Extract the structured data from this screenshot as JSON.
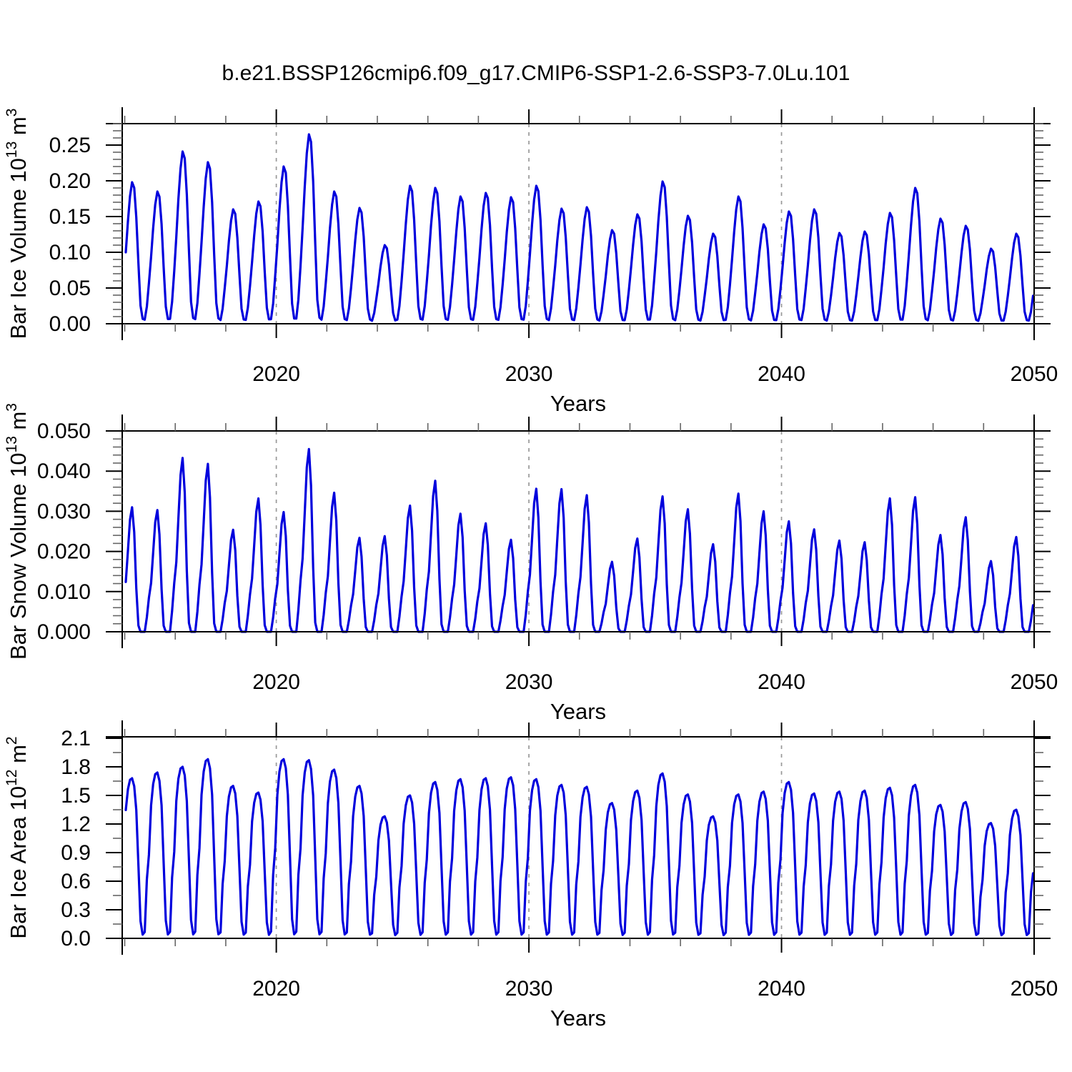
{
  "title": "b.e21.BSSP126cmip6.f09_g17.CMIP6-SSP1-2.6-SSP3-7.0Lu.101",
  "style": {
    "background": "#ffffff",
    "line_color": "#0000dd",
    "frame_color": "#000000",
    "minor_tick_color": "#666666",
    "grid_color": "#999999",
    "text_color": "#000000"
  },
  "x_axis": {
    "label": "Years",
    "range": [
      2013.9,
      2050
    ],
    "major_ticks": [
      2020,
      2030,
      2040,
      2050
    ],
    "minor_step_years": 2,
    "dashed_grid_years": [
      2020,
      2030,
      2040
    ]
  },
  "chart_data": [
    {
      "type": "line",
      "name": "bar-ice-volume",
      "title": "",
      "ylabel": "Bar Ice Volume 10^13 m^3",
      "ylabel_runs": [
        [
          "Bar Ice Volume 10",
          0
        ],
        [
          "13",
          1
        ],
        [
          " m",
          0
        ],
        [
          "3",
          1
        ]
      ],
      "xlabel": "Years",
      "ylim": [
        0,
        0.28
      ],
      "xlim": [
        2013.9,
        2050
      ],
      "y_major_tick_values": [
        0.0,
        0.05,
        0.1,
        0.15,
        0.2,
        0.25
      ],
      "y_major_tick_labels": [
        "0.00",
        "0.05",
        "0.10",
        "0.15",
        "0.20",
        "0.25"
      ],
      "y_minor_step": 0.01,
      "grid": false,
      "legend": "none",
      "series_note": "monthly seasonal cycle, one peak per year",
      "years": [
        2014,
        2015,
        2016,
        2017,
        2018,
        2019,
        2020,
        2021,
        2022,
        2023,
        2024,
        2025,
        2026,
        2027,
        2028,
        2029,
        2030,
        2031,
        2032,
        2033,
        2034,
        2035,
        2036,
        2037,
        2038,
        2039,
        2040,
        2041,
        2042,
        2043,
        2044,
        2045,
        2046,
        2047,
        2048,
        2049
      ],
      "annual_peaks": [
        0.198,
        0.185,
        0.241,
        0.226,
        0.16,
        0.171,
        0.22,
        0.265,
        0.185,
        0.162,
        0.11,
        0.193,
        0.19,
        0.178,
        0.183,
        0.177,
        0.193,
        0.161,
        0.163,
        0.131,
        0.153,
        0.199,
        0.151,
        0.126,
        0.178,
        0.139,
        0.157,
        0.16,
        0.127,
        0.129,
        0.155,
        0.19,
        0.147,
        0.137,
        0.105,
        0.126
      ],
      "annual_min": 0.002,
      "seasonal_fractions": [
        0.5,
        0.72,
        0.9,
        1.0,
        0.96,
        0.75,
        0.42,
        0.12,
        0.025,
        0.02,
        0.12,
        0.3
      ]
    },
    {
      "type": "line",
      "name": "bar-snow-volume",
      "title": "",
      "ylabel": "Bar Snow Volume 10^13 m^3",
      "ylabel_runs": [
        [
          "Bar Snow Volume 10",
          0
        ],
        [
          "13",
          1
        ],
        [
          " m",
          0
        ],
        [
          "3",
          1
        ]
      ],
      "xlabel": "Years",
      "ylim": [
        0,
        0.05
      ],
      "xlim": [
        2013.9,
        2050
      ],
      "y_major_tick_values": [
        0.0,
        0.01,
        0.02,
        0.03,
        0.04,
        0.05
      ],
      "y_major_tick_labels": [
        "0.000",
        "0.010",
        "0.020",
        "0.030",
        "0.040",
        "0.050"
      ],
      "y_minor_step": 0.002,
      "grid": false,
      "legend": "none",
      "series_note": "monthly seasonal cycle, zero snow each summer",
      "years": [
        2014,
        2015,
        2016,
        2017,
        2018,
        2019,
        2020,
        2021,
        2022,
        2023,
        2024,
        2025,
        2026,
        2027,
        2028,
        2029,
        2030,
        2031,
        2032,
        2033,
        2034,
        2035,
        2036,
        2037,
        2038,
        2039,
        2040,
        2041,
        2042,
        2043,
        2044,
        2045,
        2046,
        2047,
        2048,
        2049
      ],
      "annual_peaks": [
        0.031,
        0.0303,
        0.0433,
        0.0418,
        0.0254,
        0.0332,
        0.0298,
        0.0455,
        0.0346,
        0.0234,
        0.0238,
        0.0314,
        0.0376,
        0.0294,
        0.027,
        0.0229,
        0.0356,
        0.0355,
        0.034,
        0.0174,
        0.0232,
        0.0337,
        0.0305,
        0.0218,
        0.0344,
        0.03,
        0.0275,
        0.0255,
        0.0227,
        0.0223,
        0.0332,
        0.0335,
        0.0241,
        0.0285,
        0.0176,
        0.0236
      ],
      "annual_min": 0.0,
      "seasonal_fractions": [
        0.4,
        0.65,
        0.9,
        1.0,
        0.8,
        0.35,
        0.05,
        0.0,
        0.0,
        0.0,
        0.12,
        0.28
      ]
    },
    {
      "type": "line",
      "name": "bar-ice-area",
      "title": "",
      "ylabel": "Bar Ice Area 10^12 m^2",
      "ylabel_runs": [
        [
          "Bar Ice Area 10",
          0
        ],
        [
          "12",
          1
        ],
        [
          " m",
          0
        ],
        [
          "2",
          1
        ]
      ],
      "xlabel": "Years",
      "ylim": [
        0,
        2.115
      ],
      "xlim": [
        2013.9,
        2050
      ],
      "y_major_tick_values": [
        0.0,
        0.3,
        0.6,
        0.9,
        1.2,
        1.5,
        1.8,
        2.1
      ],
      "y_major_tick_labels": [
        "0.0",
        "0.3",
        "0.6",
        "0.9",
        "1.2",
        "1.5",
        "1.8",
        "2.1"
      ],
      "y_minor_step": 0.15,
      "grid": false,
      "legend": "none",
      "series_note": "monthly seasonal cycle, flat-topped winter maxima",
      "years": [
        2014,
        2015,
        2016,
        2017,
        2018,
        2019,
        2020,
        2021,
        2022,
        2023,
        2024,
        2025,
        2026,
        2027,
        2028,
        2029,
        2030,
        2031,
        2032,
        2033,
        2034,
        2035,
        2036,
        2037,
        2038,
        2039,
        2040,
        2041,
        2042,
        2043,
        2044,
        2045,
        2046,
        2047,
        2048,
        2049
      ],
      "annual_peaks": [
        1.68,
        1.74,
        1.8,
        1.88,
        1.6,
        1.53,
        1.88,
        1.87,
        1.77,
        1.6,
        1.28,
        1.5,
        1.64,
        1.67,
        1.68,
        1.69,
        1.67,
        1.61,
        1.59,
        1.42,
        1.55,
        1.73,
        1.51,
        1.28,
        1.51,
        1.54,
        1.64,
        1.52,
        1.54,
        1.55,
        1.58,
        1.61,
        1.4,
        1.43,
        1.21,
        1.35
      ],
      "annual_min": 0.015,
      "seasonal_fractions": [
        0.8,
        0.93,
        0.99,
        1.0,
        0.95,
        0.8,
        0.45,
        0.1,
        0.015,
        0.03,
        0.35,
        0.5
      ]
    }
  ]
}
